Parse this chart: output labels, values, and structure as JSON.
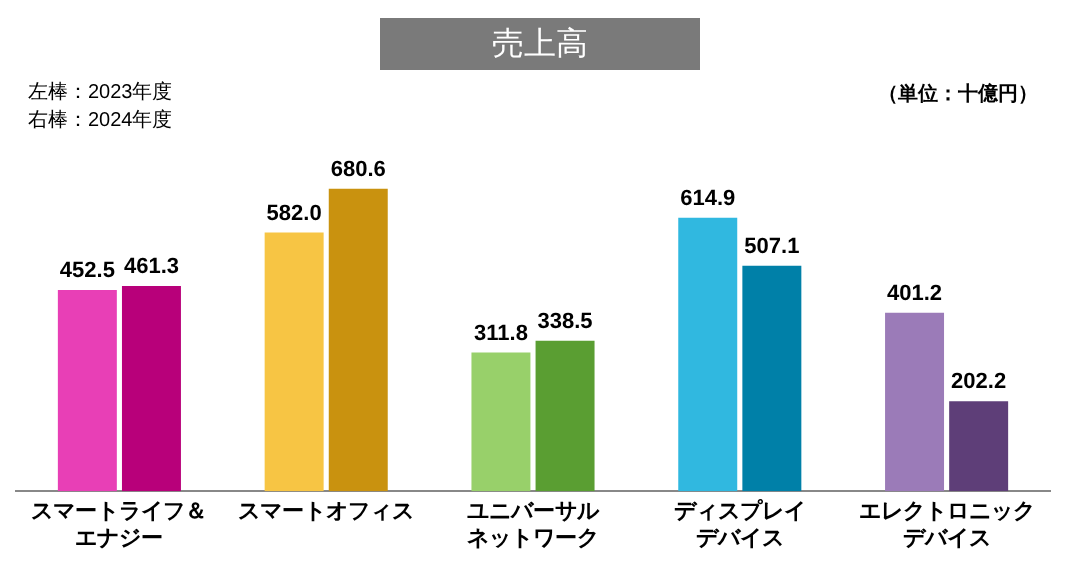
{
  "chart_data": {
    "type": "bar",
    "title": "売上高",
    "annotations": [
      "左棒：2023年度",
      "右棒：2024年度",
      "（単位：十億円）"
    ],
    "categories": [
      "スマートライフ＆エナジー",
      "スマートオフィス",
      "ユニバーサルネットワーク",
      "ディスプレイデバイス",
      "エレクトロニックデバイス"
    ],
    "series": [
      {
        "colors": [
          "#e83fb6",
          "#f7c544",
          "#98d06a",
          "#30b8e0",
          "#9b7bb8"
        ],
        "values": [
          452.5,
          582.0,
          311.8,
          614.9,
          401.2
        ],
        "value_labels": [
          "452.5",
          "582.0",
          "311.8",
          "614.9",
          "401.2"
        ]
      },
      {
        "colors": [
          "#b8007a",
          "#c9920f",
          "#5a9e32",
          "#0080a8",
          "#5e3e78"
        ],
        "values": [
          461.3,
          680.6,
          338.5,
          507.1,
          202.2
        ],
        "value_labels": [
          "461.3",
          "680.6",
          "338.5",
          "507.1",
          "202.2"
        ]
      }
    ],
    "grid": false,
    "legend": false
  }
}
